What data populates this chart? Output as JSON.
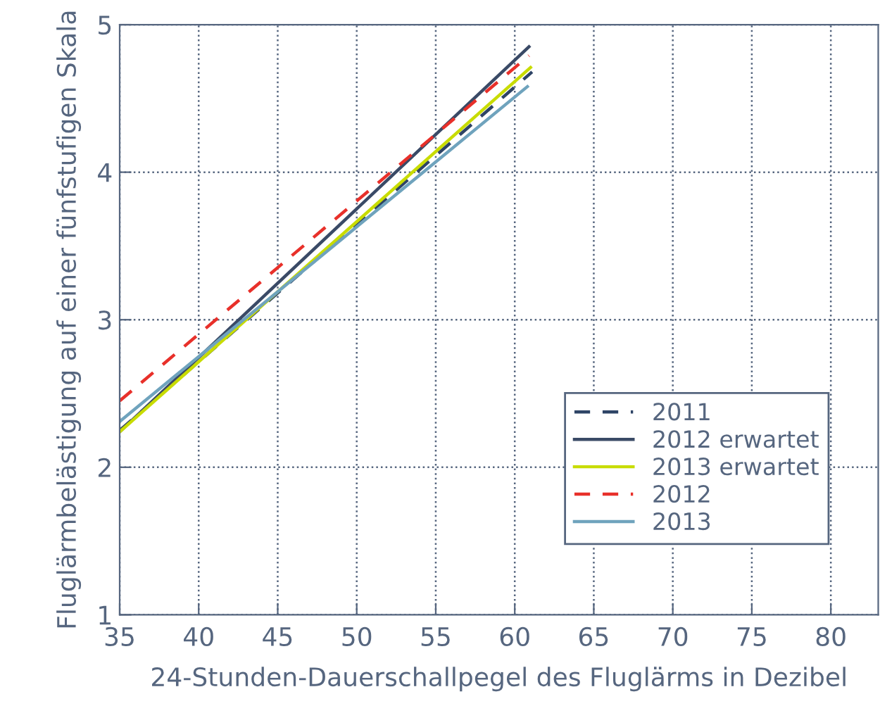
{
  "chart_data": {
    "type": "line",
    "xlabel": "24-Stunden-Dauerschallpegel des Fluglärms in Dezibel",
    "ylabel": "Fluglärmbelästigung auf einer fünfstufigen Skala",
    "xlim": [
      35,
      83
    ],
    "ylim": [
      1,
      5
    ],
    "xticks": [
      35,
      40,
      45,
      50,
      55,
      60,
      65,
      70,
      75,
      80
    ],
    "yticks": [
      1,
      2,
      3,
      4,
      5
    ],
    "grid": true,
    "legend": "bottom right",
    "marker": "none",
    "series": [
      {
        "name": "2011",
        "color": "#2e4466",
        "line_style": "dashed",
        "x": [
          35,
          61.1
        ],
        "values": [
          2.25,
          4.68
        ]
      },
      {
        "name": "2012 erwartet",
        "color": "#3a4a66",
        "line_style": "solid",
        "x": [
          35,
          60.9
        ],
        "values": [
          2.24,
          4.85
        ]
      },
      {
        "name": "2013 erwartet",
        "color": "#c8dc00",
        "line_style": "solid",
        "x": [
          35,
          61.0
        ],
        "values": [
          2.24,
          4.71
        ]
      },
      {
        "name": "2012",
        "color": "#e8302a",
        "line_style": "dashed",
        "x": [
          35,
          60.9
        ],
        "values": [
          2.45,
          4.79
        ]
      },
      {
        "name": "2013",
        "color": "#6fa3bd",
        "line_style": "solid",
        "x": [
          35,
          60.8
        ],
        "values": [
          2.31,
          4.58
        ]
      }
    ]
  }
}
